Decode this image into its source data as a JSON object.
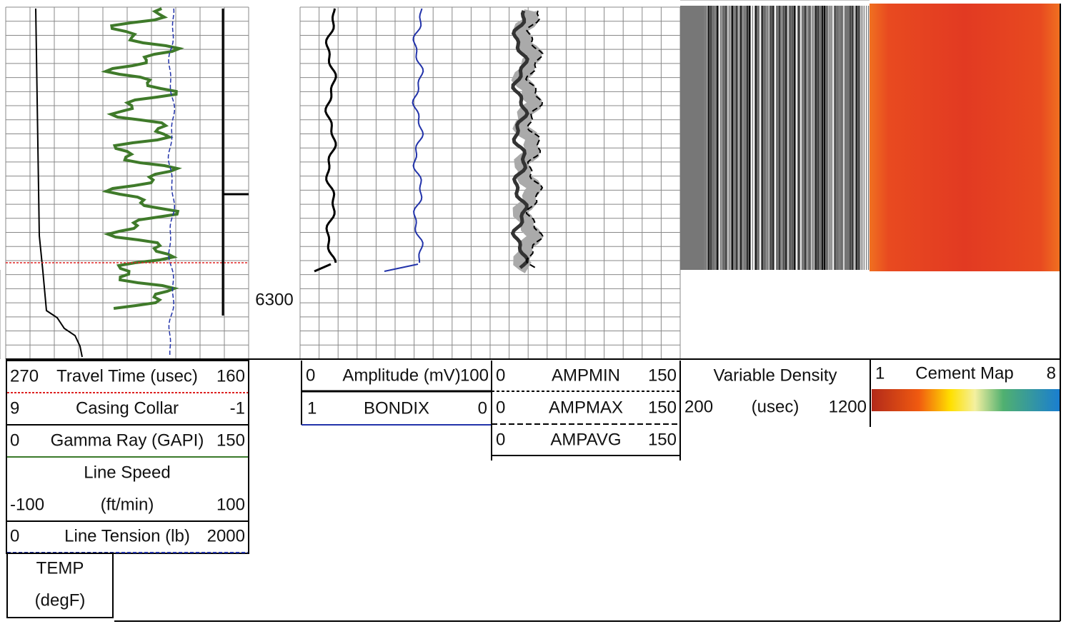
{
  "depth_label": "6300",
  "track1": {
    "curves": [
      {
        "left": 270,
        "name": "Travel Time (usec)",
        "right": 160
      },
      {
        "left": 9,
        "name": "Casing Collar",
        "right": -1
      },
      {
        "left": 0,
        "name": "Gamma Ray (GAPI)",
        "right": 150
      },
      {
        "name": "Line Speed",
        "left": -100,
        "unit": "(ft/min)",
        "right": 100
      },
      {
        "left": 0,
        "name": "Line Tension (lb)",
        "right": 2000
      },
      {
        "name": "TEMP",
        "unit": "(degF)"
      }
    ]
  },
  "track2": {
    "curves": [
      {
        "left": 0,
        "name": "Amplitude (mV)",
        "right": 100
      },
      {
        "left": 1,
        "name": "BONDIX",
        "right": 0
      }
    ]
  },
  "track3": {
    "curves": [
      {
        "left": 0,
        "name": "AMPMIN",
        "right": 150
      },
      {
        "left": 0,
        "name": "AMPMAX",
        "right": 150
      },
      {
        "left": 0,
        "name": "AMPAVG",
        "right": 150
      }
    ]
  },
  "track4": {
    "name": "Variable Density",
    "left": 200,
    "unit": "(usec)",
    "right": 1200
  },
  "track5": {
    "left": 1,
    "name": "Cement Map",
    "right": 8
  }
}
